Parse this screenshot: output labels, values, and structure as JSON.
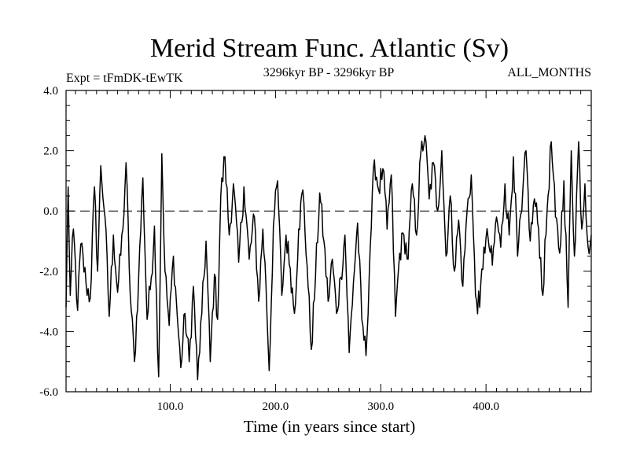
{
  "chart_data": {
    "type": "line",
    "title": "Merid Stream Func. Atlantic (Sv)",
    "subtitle_left": "Expt = tFmDK-tEwTK",
    "subtitle_center": "3296kyr BP - 3296kyr BP",
    "subtitle_right": "ALL_MONTHS",
    "xlabel": "Time (in years since start)",
    "ylabel": "",
    "xlim": [
      1,
      500
    ],
    "ylim": [
      -6.0,
      4.0
    ],
    "x_ticks": [
      100,
      200,
      300,
      400
    ],
    "x_tick_labels": [
      "100.0",
      "200.0",
      "300.0",
      "400.0"
    ],
    "y_ticks": [
      -6,
      -4,
      -2,
      0,
      2,
      4
    ],
    "y_tick_labels": [
      "-6.0",
      "-4.0",
      "-2.0",
      "0.0",
      "2.0",
      "4.0"
    ],
    "reference_line": {
      "y": 0,
      "style": "dashed"
    },
    "series": [
      {
        "name": "Merid Stream Func. Atlantic",
        "color": "#000000",
        "x_start": 1,
        "x_step": 1,
        "anchors": [
          [
            1,
            -3.2
          ],
          [
            3,
            0.8
          ],
          [
            5,
            -2.8
          ],
          [
            8,
            -0.6
          ],
          [
            12,
            -3.3
          ],
          [
            15,
            -1.1
          ],
          [
            20,
            -2.4
          ],
          [
            24,
            -2.9
          ],
          [
            28,
            0.8
          ],
          [
            31,
            -2.0
          ],
          [
            34,
            1.5
          ],
          [
            38,
            -0.2
          ],
          [
            42,
            -3.5
          ],
          [
            46,
            -0.8
          ],
          [
            50,
            -2.7
          ],
          [
            55,
            -0.6
          ],
          [
            58,
            1.6
          ],
          [
            62,
            -2.8
          ],
          [
            66,
            -5.0
          ],
          [
            70,
            -2.2
          ],
          [
            74,
            1.1
          ],
          [
            78,
            -3.6
          ],
          [
            82,
            -2.2
          ],
          [
            85,
            -0.5
          ],
          [
            89,
            -5.5
          ],
          [
            92,
            1.9
          ],
          [
            95,
            -2.0
          ],
          [
            99,
            -3.8
          ],
          [
            103,
            -1.5
          ],
          [
            106,
            -3.1
          ],
          [
            110,
            -5.2
          ],
          [
            114,
            -3.4
          ],
          [
            118,
            -5.0
          ],
          [
            122,
            -2.5
          ],
          [
            126,
            -5.6
          ],
          [
            130,
            -3.4
          ],
          [
            134,
            -1.0
          ],
          [
            138,
            -5.0
          ],
          [
            142,
            -2.1
          ],
          [
            145,
            -3.6
          ],
          [
            148,
            0.5
          ],
          [
            152,
            1.8
          ],
          [
            156,
            -0.8
          ],
          [
            160,
            0.9
          ],
          [
            165,
            -1.7
          ],
          [
            170,
            0.8
          ],
          [
            175,
            -1.6
          ],
          [
            180,
            -0.2
          ],
          [
            184,
            -3.0
          ],
          [
            188,
            -0.6
          ],
          [
            191,
            -2.5
          ],
          [
            194,
            -5.3
          ],
          [
            198,
            -0.5
          ],
          [
            202,
            1.0
          ],
          [
            206,
            -2.8
          ],
          [
            210,
            -0.8
          ],
          [
            214,
            -1.9
          ],
          [
            218,
            -3.4
          ],
          [
            222,
            -0.6
          ],
          [
            226,
            0.7
          ],
          [
            230,
            -1.8
          ],
          [
            234,
            -4.6
          ],
          [
            238,
            -2.2
          ],
          [
            242,
            0.6
          ],
          [
            246,
            -1.0
          ],
          [
            250,
            -3.0
          ],
          [
            254,
            -1.6
          ],
          [
            258,
            -3.4
          ],
          [
            262,
            -2.2
          ],
          [
            266,
            -0.8
          ],
          [
            270,
            -4.7
          ],
          [
            274,
            -2.4
          ],
          [
            278,
            -0.4
          ],
          [
            282,
            -3.6
          ],
          [
            286,
            -4.8
          ],
          [
            290,
            -1.2
          ],
          [
            294,
            1.7
          ],
          [
            298,
            0.7
          ],
          [
            302,
            1.4
          ],
          [
            306,
            -0.6
          ],
          [
            310,
            1.2
          ],
          [
            314,
            -3.5
          ],
          [
            318,
            -1.4
          ],
          [
            322,
            -0.8
          ],
          [
            326,
            -1.6
          ],
          [
            330,
            0.9
          ],
          [
            334,
            -0.8
          ],
          [
            338,
            1.9
          ],
          [
            342,
            2.5
          ],
          [
            346,
            0.4
          ],
          [
            350,
            1.6
          ],
          [
            354,
            0.0
          ],
          [
            358,
            2.0
          ],
          [
            362,
            -1.5
          ],
          [
            366,
            0.5
          ],
          [
            370,
            -2.0
          ],
          [
            374,
            -0.3
          ],
          [
            378,
            -2.5
          ],
          [
            382,
            0.0
          ],
          [
            386,
            1.2
          ],
          [
            390,
            -2.8
          ],
          [
            394,
            -3.2
          ],
          [
            398,
            -1.2
          ],
          [
            402,
            -0.9
          ],
          [
            406,
            -1.8
          ],
          [
            410,
            -0.2
          ],
          [
            414,
            -1.2
          ],
          [
            418,
            0.9
          ],
          [
            422,
            -0.8
          ],
          [
            426,
            1.8
          ],
          [
            430,
            -1.5
          ],
          [
            434,
            0.0
          ],
          [
            438,
            2.0
          ],
          [
            442,
            -1.0
          ],
          [
            446,
            0.4
          ],
          [
            450,
            -0.6
          ],
          [
            454,
            -2.8
          ],
          [
            458,
            0.0
          ],
          [
            462,
            2.3
          ],
          [
            466,
            -0.2
          ],
          [
            470,
            -1.4
          ],
          [
            474,
            1.0
          ],
          [
            478,
            -3.2
          ],
          [
            481,
            2.0
          ],
          [
            484,
            -1.5
          ],
          [
            488,
            2.3
          ],
          [
            491,
            -0.6
          ],
          [
            494,
            0.9
          ],
          [
            497,
            -1.2
          ],
          [
            500,
            -0.8
          ]
        ],
        "min": -5.6,
        "max": 2.5
      }
    ]
  }
}
